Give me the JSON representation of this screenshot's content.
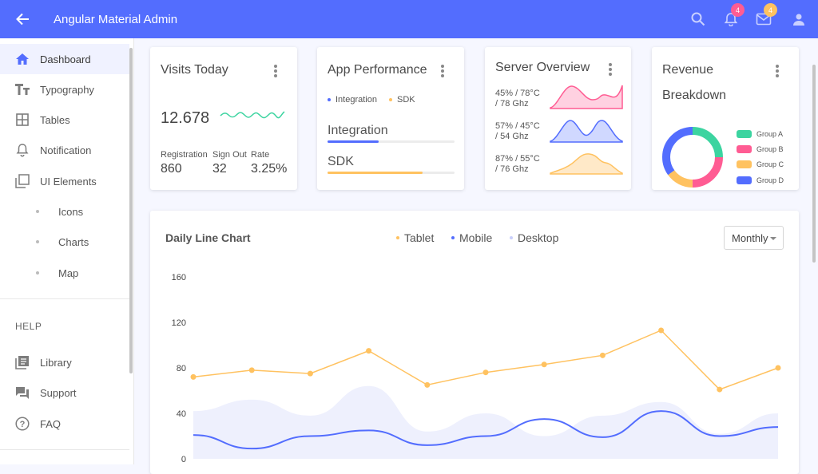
{
  "header": {
    "title": "Angular Material Admin",
    "notifications_badge": "4",
    "mail_badge": "4"
  },
  "sidebar": {
    "items": [
      {
        "label": "Dashboard",
        "icon": "home-icon",
        "active": true
      },
      {
        "label": "Typography",
        "icon": "text-icon"
      },
      {
        "label": "Tables",
        "icon": "table-icon"
      },
      {
        "label": "Notification",
        "icon": "bell-icon"
      },
      {
        "label": "UI Elements",
        "icon": "layers-icon"
      },
      {
        "label": "Icons",
        "sub": true
      },
      {
        "label": "Charts",
        "sub": true
      },
      {
        "label": "Map",
        "sub": true
      }
    ],
    "help_heading": "HELP",
    "help_items": [
      {
        "label": "Library",
        "icon": "library-icon"
      },
      {
        "label": "Support",
        "icon": "forum-icon"
      },
      {
        "label": "FAQ",
        "icon": "help-circle-icon"
      }
    ]
  },
  "visits": {
    "title": "Visits Today",
    "value": "12.678",
    "stats": [
      {
        "label": "Registration",
        "value": "860"
      },
      {
        "label": "Sign Out",
        "value": "32"
      },
      {
        "label": "Rate",
        "value": "3.25%"
      }
    ]
  },
  "performance": {
    "title": "App Performance",
    "legend": [
      "Integration",
      "SDK"
    ],
    "bars": [
      {
        "label": "Integration",
        "fraction": 0.4,
        "color": "#536dfe"
      },
      {
        "label": "SDK",
        "fraction": 0.75,
        "color": "#ffc260"
      }
    ]
  },
  "server": {
    "title": "Server Overview",
    "rows": [
      {
        "line1": "45% / 78°C",
        "line2": "/ 78 Ghz",
        "color": "#ff5c93"
      },
      {
        "line1": "57% / 45°C",
        "line2": "/ 54 Ghz",
        "color": "#536dfe"
      },
      {
        "line1": "87% / 55°C",
        "line2": "/ 76 Ghz",
        "color": "#ffc260"
      }
    ]
  },
  "revenue": {
    "title_line1": "Revenue",
    "title_line2": "Breakdown",
    "groups": [
      {
        "name": "Group A",
        "color": "#3cd4a0"
      },
      {
        "name": "Group B",
        "color": "#ff5c93"
      },
      {
        "name": "Group C",
        "color": "#ffc260"
      },
      {
        "name": "Group D",
        "color": "#536dfe"
      }
    ]
  },
  "daily": {
    "title": "Daily Line Chart",
    "legend": [
      {
        "name": "Tablet",
        "color": "#ffc260"
      },
      {
        "name": "Mobile",
        "color": "#536dfe"
      },
      {
        "name": "Desktop",
        "color": "#c9cffb"
      }
    ],
    "select_value": "Monthly"
  },
  "chart_data": {
    "type": "line",
    "title": "Daily Line Chart",
    "ylim": [
      0,
      160
    ],
    "y_ticks": [
      "0",
      "40",
      "80",
      "120",
      "160"
    ],
    "series": [
      {
        "name": "Tablet",
        "values": [
          72,
          78,
          75,
          95,
          65,
          76,
          83,
          91,
          113,
          61,
          80
        ]
      },
      {
        "name": "Mobile",
        "values": [
          21,
          9,
          20,
          25,
          12,
          20,
          35,
          19,
          42,
          20,
          28
        ]
      },
      {
        "name": "Desktop",
        "values": [
          42,
          52,
          38,
          64,
          24,
          40,
          20,
          38,
          50,
          22,
          40
        ]
      }
    ]
  }
}
